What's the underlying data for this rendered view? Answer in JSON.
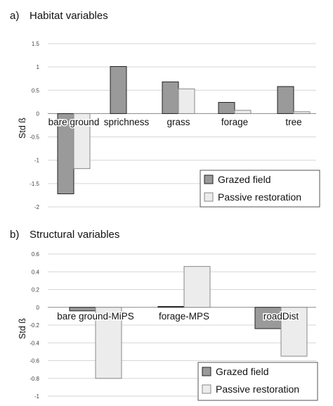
{
  "panels": [
    {
      "label": "a)",
      "title": "Habitat variables",
      "chart_data": {
        "type": "bar",
        "title": "Habitat variables",
        "ylabel": "Std ß",
        "ylim": [
          -2,
          1.5
        ],
        "yticks": [
          "1.5",
          "1",
          "0.5",
          "0",
          "-0.5",
          "-1",
          "-1.5",
          "-2"
        ],
        "ytick_values": [
          1.5,
          1,
          0.5,
          0,
          -0.5,
          -1,
          -1.5,
          -2
        ],
        "grid": true,
        "legend": "bottom-right",
        "categories": [
          "bare ground",
          "sprichness",
          "grass",
          "forage",
          "tree"
        ],
        "series": [
          {
            "name": "Grazed field",
            "color": "#9a9a9a",
            "values": [
              -1.72,
              1.01,
              0.68,
              0.24,
              0.58
            ]
          },
          {
            "name": "Passive restoration",
            "color": "#ececec",
            "values": [
              -1.18,
              0.0,
              0.53,
              0.07,
              0.04
            ]
          }
        ]
      }
    },
    {
      "label": "b)",
      "title": "Structural variables",
      "chart_data": {
        "type": "bar",
        "title": "Structural variables",
        "ylabel": "Std ß",
        "ylim": [
          -1,
          0.6
        ],
        "yticks": [
          "0.6",
          "0.4",
          "0.2",
          "0",
          "-0.2",
          "-0.4",
          "-0.6",
          "-0.8",
          "-1"
        ],
        "ytick_values": [
          0.6,
          0.4,
          0.2,
          0,
          -0.2,
          -0.4,
          -0.6,
          -0.8,
          -1
        ],
        "grid": true,
        "legend": "bottom-right",
        "categories": [
          "bare ground-MiPS",
          "forage-MPS",
          "roadDist"
        ],
        "series": [
          {
            "name": "Grazed field",
            "color": "#9a9a9a",
            "values": [
              -0.04,
              0.01,
              -0.24
            ]
          },
          {
            "name": "Passive restoration",
            "color": "#ececec",
            "values": [
              -0.8,
              0.46,
              -0.55
            ]
          }
        ]
      }
    }
  ]
}
